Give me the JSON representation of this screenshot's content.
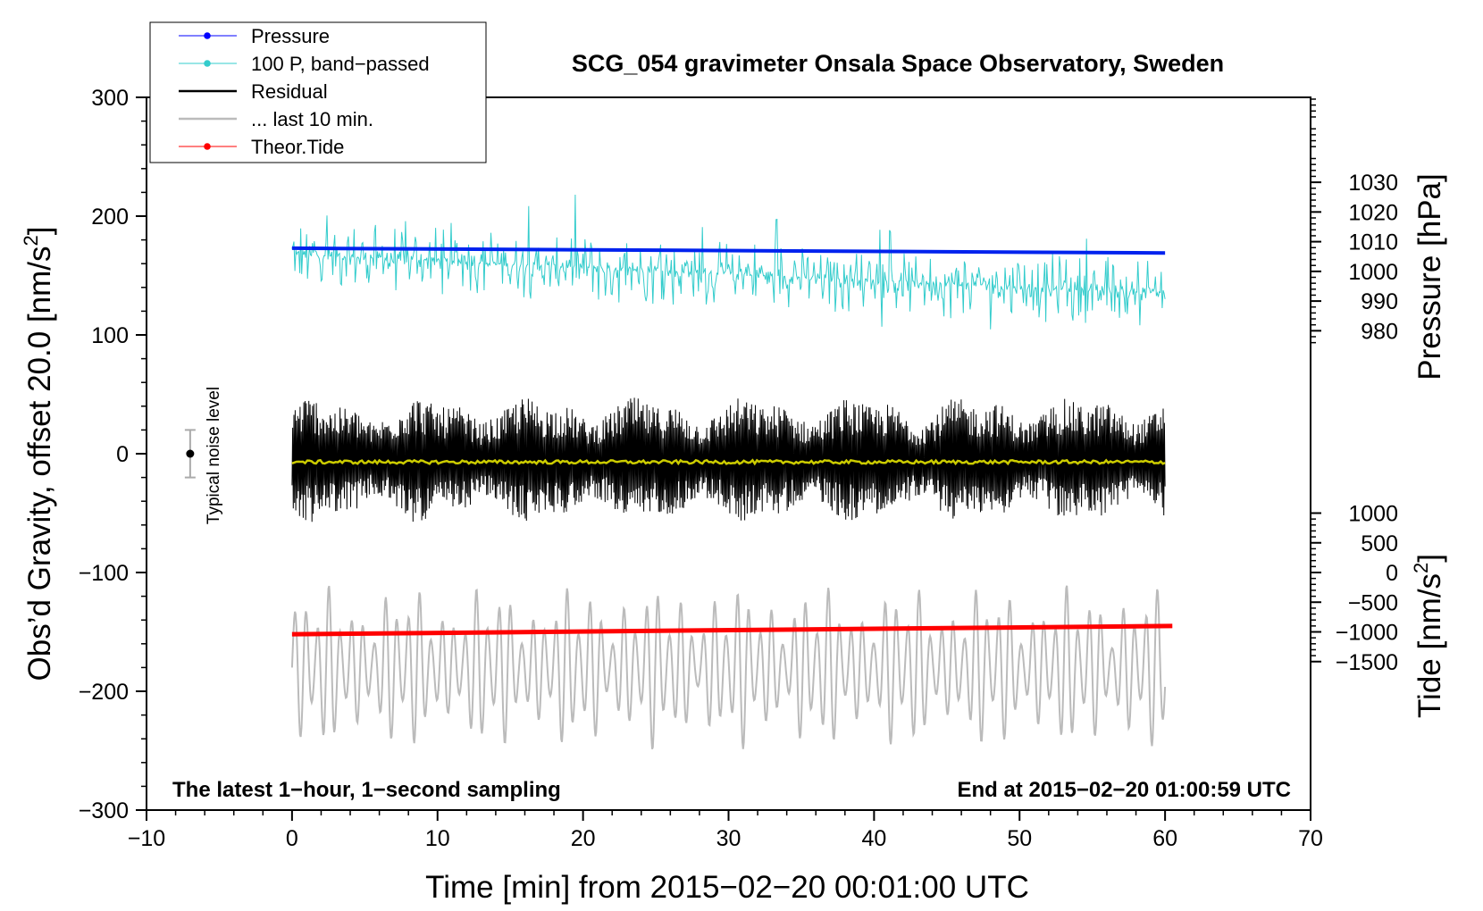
{
  "chart_data": {
    "type": "line",
    "title": "SCG_054 gravimeter Onsala Space Observatory, Sweden",
    "xlabel": "Time [min] from 2015−02−20 00:01:00 UTC",
    "ylabel_left": "Obs’d Gravity, offset 20.0 [nm/s2]",
    "ylabel_left_main": "Obs’d Gravity, offset 20.0 [nm/s",
    "ylabel_left_sup": "2",
    "ylabel_left_end": "]",
    "ylabel_right_pressure": "Pressure [hPa]",
    "ylabel_right_tide_main": "Tide [nm/s",
    "ylabel_right_tide_sup": "2",
    "ylabel_right_tide_end": "]",
    "xlim": [
      -10,
      70
    ],
    "ylim_left": [
      -300,
      300
    ],
    "x_ticks": [
      "−10",
      "0",
      "10",
      "20",
      "30",
      "40",
      "50",
      "60",
      "70"
    ],
    "y_ticks_left": [
      "300",
      "200",
      "100",
      "0",
      "−100",
      "−200",
      "−300"
    ],
    "y_ticks_pressure": [
      "1030",
      "1020",
      "1010",
      "1000",
      "990",
      "980"
    ],
    "y_ticks_tide": [
      "1000",
      "500",
      "0",
      "−500",
      "−1000",
      "−1500"
    ],
    "pressure_ticks_values": [
      1030,
      1020,
      1010,
      1000,
      990,
      980
    ],
    "tide_ticks_values": [
      1000,
      500,
      0,
      -500,
      -1000,
      -1500
    ],
    "pressure_axis_map": {
      "value_at_left_300": 1058.6,
      "hpa_per_nms2": 0.4
    },
    "tide_axis_map": {
      "value_at_left_0": 2000,
      "tide_per_nms2": 20
    },
    "annotation_left": "The latest 1−hour, 1−second sampling",
    "annotation_right": "End at 2015−02−20 01:00:59 UTC",
    "noise_label": "Typical noise level",
    "noise_bar": {
      "x": -7,
      "center": 0,
      "half_range": 20
    },
    "legend": [
      {
        "label": "Pressure",
        "color": "#0000ff",
        "style": "line-dot"
      },
      {
        "label": "100 P, band−passed",
        "color": "#33cccc",
        "style": "line-dot"
      },
      {
        "label": "Residual",
        "color": "#000000",
        "style": "line"
      },
      {
        "label": "... last 10 min.",
        "color": "#bbbbbb",
        "style": "line"
      },
      {
        "label": "Theor.Tide",
        "color": "#ff0000",
        "style": "line-dot"
      }
    ],
    "series": [
      {
        "name": "Pressure",
        "color": "#0022ee",
        "x_range": [
          0,
          60
        ],
        "start": 173,
        "end": 169,
        "unit": "nm/s2 plot units"
      },
      {
        "name": "100 P, band-passed",
        "color": "#33cccc",
        "x_range": [
          0,
          60
        ],
        "center_start": 168,
        "center_end": 135,
        "amplitude": 30
      },
      {
        "name": "Residual",
        "color": "#000000",
        "x_range": [
          0,
          60
        ],
        "center": -5,
        "amplitude": 55
      },
      {
        "name": "Residual smoothed",
        "color": "#cccc00",
        "x_range": [
          0,
          60
        ],
        "value": -7
      },
      {
        "name": "Last 10 min",
        "color": "#bbbbbb",
        "x_range": [
          0,
          60
        ],
        "center": -180,
        "amplitude": 70
      },
      {
        "name": "Theor.Tide",
        "color": "#ff0000",
        "x_range": [
          0,
          60.5
        ],
        "start": -152,
        "end": -145
      }
    ]
  }
}
